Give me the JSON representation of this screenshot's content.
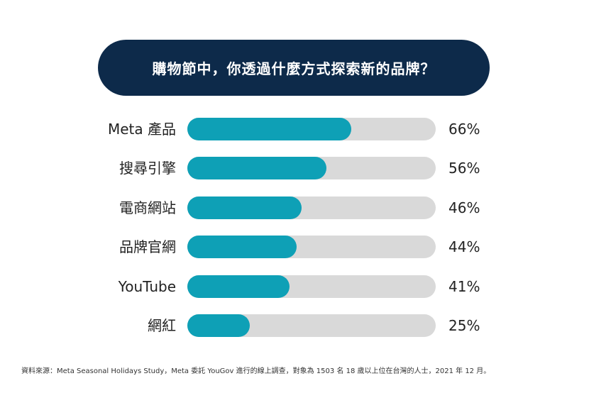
{
  "title": "購物節中，你透過什麼方式探索新的品牌？",
  "chart_data": {
    "type": "bar",
    "orientation": "horizontal",
    "categories": [
      "Meta 產品",
      "搜尋引擎",
      "電商網站",
      "品牌官網",
      "YouTube",
      "網紅"
    ],
    "values": [
      66,
      56,
      46,
      44,
      41,
      25
    ],
    "value_labels": [
      "66%",
      "56%",
      "46%",
      "44%",
      "41%",
      "25%"
    ],
    "xlim": [
      0,
      100
    ],
    "grid": false,
    "legend": "none",
    "bar_color": "#0ea0b6",
    "track_color": "#d9d9d9",
    "title_bg_color": "#0d2a4a"
  },
  "source": "資料來源：Meta Seasonal Holidays Study，Meta 委託 YouGov 進行的線上調查，對象為 1503 名 18 歲以上位在台灣的人士，2021 年 12 月。"
}
